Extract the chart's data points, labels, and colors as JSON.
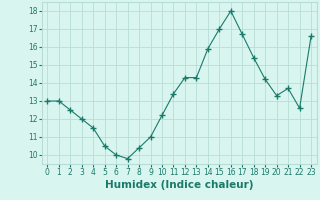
{
  "x": [
    0,
    1,
    2,
    3,
    4,
    5,
    6,
    7,
    8,
    9,
    10,
    11,
    12,
    13,
    14,
    15,
    16,
    17,
    18,
    19,
    20,
    21,
    22,
    23
  ],
  "y": [
    13.0,
    13.0,
    12.5,
    12.0,
    11.5,
    10.5,
    10.0,
    9.8,
    10.4,
    11.0,
    12.2,
    13.4,
    14.3,
    14.3,
    15.9,
    17.0,
    18.0,
    16.7,
    15.4,
    14.2,
    13.3,
    13.7,
    12.6,
    16.6
  ],
  "xlabel": "Humidex (Indice chaleur)",
  "ylim": [
    9.5,
    18.5
  ],
  "xlim": [
    -0.5,
    23.5
  ],
  "yticks": [
    10,
    11,
    12,
    13,
    14,
    15,
    16,
    17,
    18
  ],
  "xticks": [
    0,
    1,
    2,
    3,
    4,
    5,
    6,
    7,
    8,
    9,
    10,
    11,
    12,
    13,
    14,
    15,
    16,
    17,
    18,
    19,
    20,
    21,
    22,
    23
  ],
  "line_color": "#1a7a6a",
  "marker": "+",
  "marker_size": 4,
  "bg_color": "#d9f5f0",
  "grid_color": "#b8ddd8",
  "tick_label_fontsize": 5.5,
  "xlabel_fontsize": 7.5
}
